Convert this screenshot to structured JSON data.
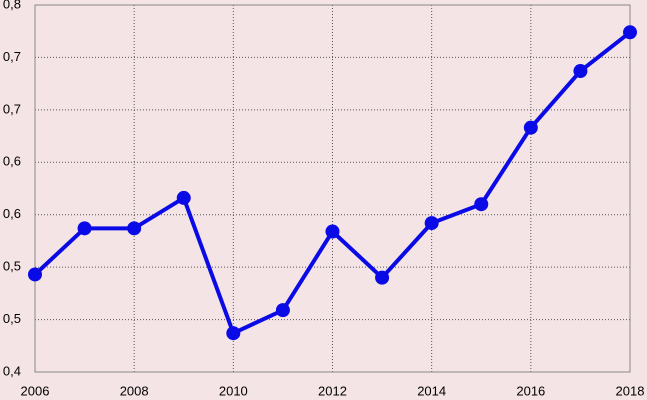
{
  "chart_data": {
    "type": "line",
    "x": [
      2006,
      2007,
      2008,
      2009,
      2010,
      2011,
      2012,
      2013,
      2014,
      2015,
      2016,
      2017,
      2018
    ],
    "series": [
      {
        "color": "#0a0ae6",
        "values": [
          0.493,
          0.537,
          0.537,
          0.566,
          0.437,
          0.459,
          0.534,
          0.49,
          0.542,
          0.56,
          0.633,
          0.687,
          0.724
        ]
      }
    ],
    "xlim": [
      2006,
      2018
    ],
    "xticks": [
      2006,
      2008,
      2010,
      2012,
      2014,
      2016,
      2018
    ],
    "ylim": [
      0.4,
      0.75
    ],
    "yticks": [
      {
        "value": 0.4,
        "label": "0,4"
      },
      {
        "value": 0.45,
        "label": "0,5"
      },
      {
        "value": 0.5,
        "label": "0,5"
      },
      {
        "value": 0.55,
        "label": "0,6"
      },
      {
        "value": 0.6,
        "label": "0,6"
      },
      {
        "value": 0.65,
        "label": "0,7"
      },
      {
        "value": 0.7,
        "label": "0,7"
      },
      {
        "value": 0.75,
        "label": "0,8"
      }
    ],
    "grid": true
  }
}
